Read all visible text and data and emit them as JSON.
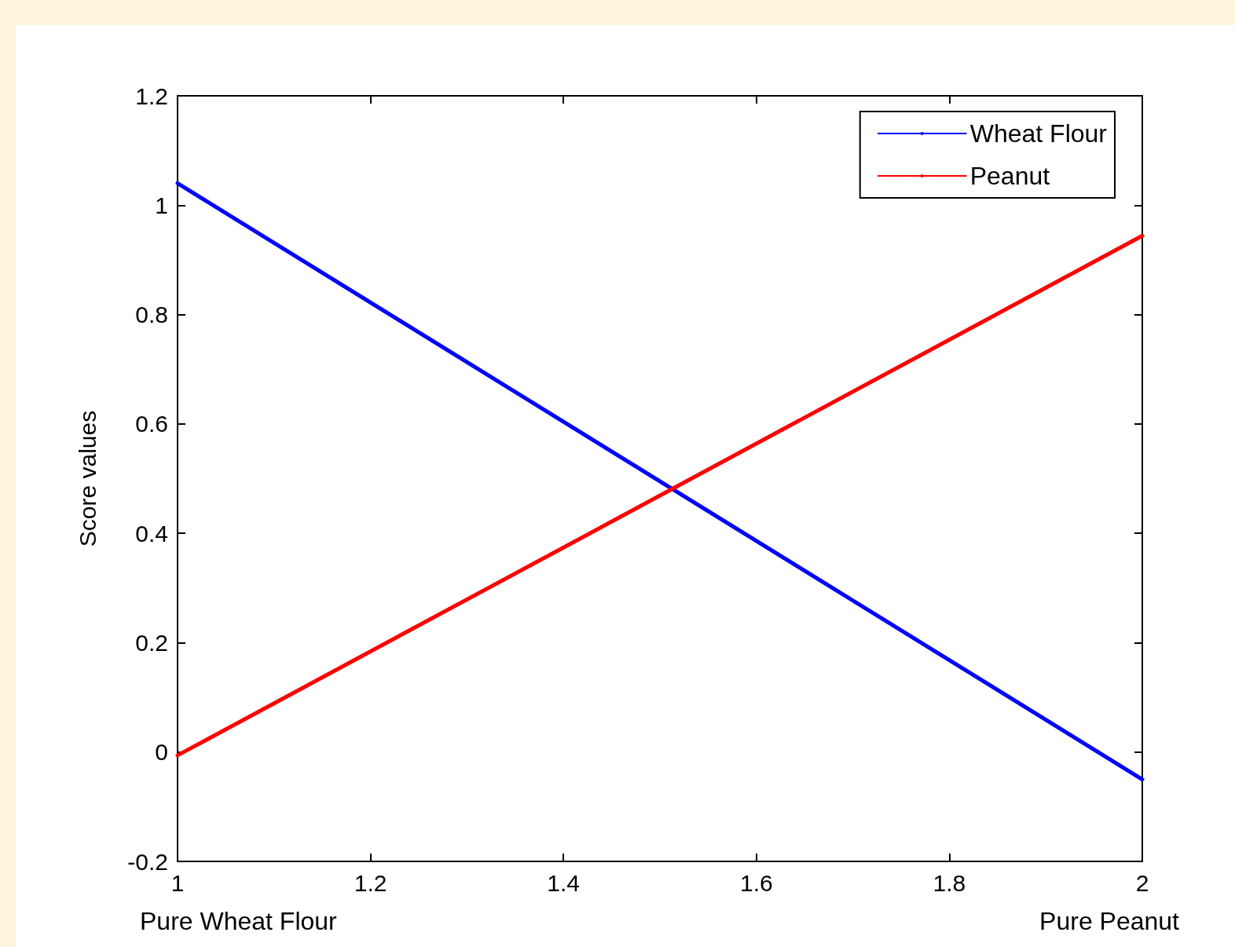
{
  "chart_data": {
    "type": "line",
    "ylabel": "Score values",
    "annotations": [
      "Pure Wheat Flour",
      "Pure Peanut"
    ],
    "x": [
      1,
      2
    ],
    "series": [
      {
        "name": "Wheat Flour",
        "color": "#0000ff",
        "values": [
          1.04,
          -0.05
        ]
      },
      {
        "name": "Peanut",
        "color": "#ff0000",
        "values": [
          -0.006,
          0.944
        ]
      }
    ],
    "xlim": [
      1,
      2
    ],
    "xticks": [
      1,
      1.2,
      1.4,
      1.6,
      1.8,
      2
    ],
    "ylim": [
      -0.2,
      1.2
    ],
    "yticks": [
      -0.2,
      0,
      0.2,
      0.4,
      0.6,
      0.8,
      1,
      1.2
    ],
    "grid": false,
    "legend": "top right",
    "marker": "none",
    "line_style": "solid"
  }
}
